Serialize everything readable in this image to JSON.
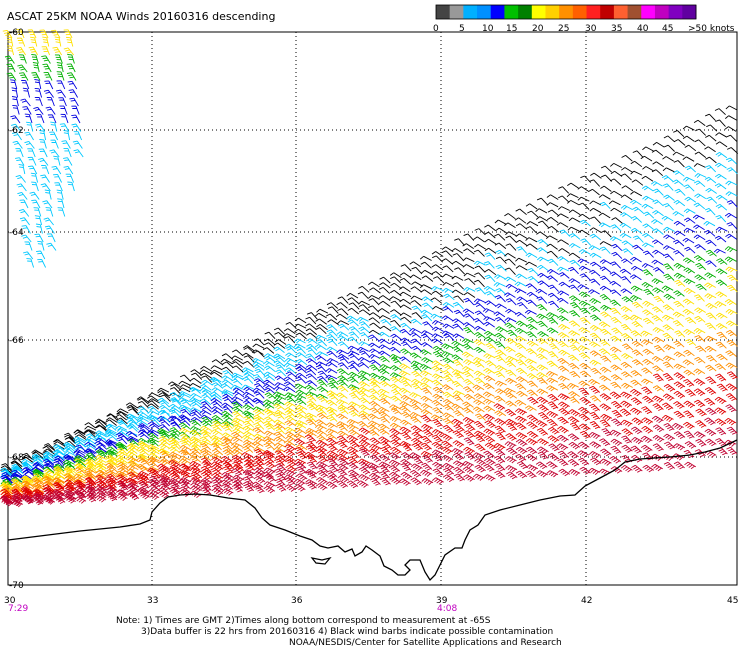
{
  "title": "ASCAT 25KM NOAA Winds 20160316 descending",
  "colorbar": {
    "labels": [
      "0",
      "5",
      "10",
      "15",
      "20",
      "25",
      "30",
      "35",
      "40",
      "45",
      ">50 knots"
    ],
    "colors": [
      "#444444",
      "#999999",
      "#00b0ff",
      "#0090ff",
      "#0000ff",
      "#00c000",
      "#008000",
      "#ffff00",
      "#ffd000",
      "#ff9000",
      "#ff6000",
      "#ff2020",
      "#c00000",
      "#ff6030",
      "#a05030",
      "#ff00ff",
      "#c000c0",
      "#8000c0",
      "#6000a0"
    ]
  },
  "axes": {
    "lat_labels": [
      "-60",
      "-62",
      "-64",
      "-66",
      "-68",
      "-70"
    ],
    "lon_labels": [
      "30",
      "33",
      "36",
      "39",
      "42",
      "45"
    ]
  },
  "time_labels": [
    "7:29",
    "4:08"
  ],
  "time_color": "#c000c0",
  "notes": {
    "line1": "Note: 1) Times are GMT 2)Times along bottom correspond to measurement at -65S",
    "line2": "3)Data buffer is 22 hrs from 20160316 4) Black wind barbs indicate possible contamination",
    "line3": "NOAA/NESDIS/Center for Satellite Applications and Research"
  },
  "wind_colors": {
    "black": "#000000",
    "cyan": "#00c8ff",
    "blue": "#0000e0",
    "green": "#00b000",
    "yellow": "#ffe000",
    "orange": "#ff9000",
    "red": "#e00000",
    "crimson": "#c00030"
  }
}
